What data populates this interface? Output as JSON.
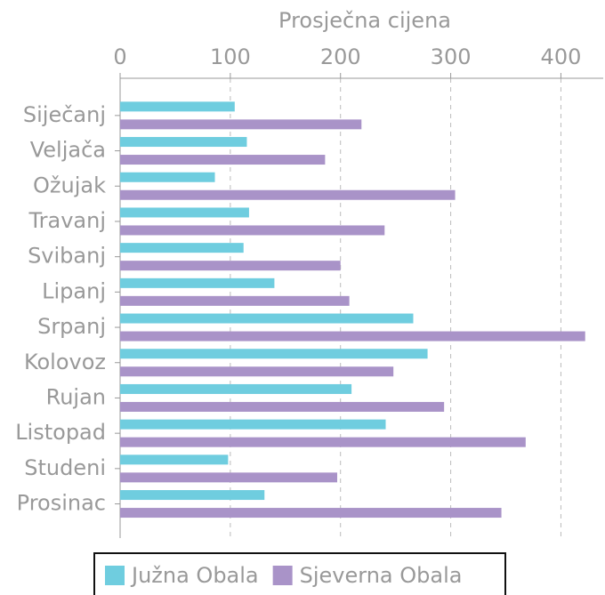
{
  "chart_data": {
    "type": "bar",
    "orientation": "horizontal",
    "xlabel": "Prosječna cijena",
    "categories": [
      "Siječanj",
      "Veljača",
      "Ožujak",
      "Travanj",
      "Svibanj",
      "Lipanj",
      "Srpanj",
      "Kolovoz",
      "Rujan",
      "Listopad",
      "Studeni",
      "Prosinac"
    ],
    "series": [
      {
        "name": "Južna Obala",
        "color": "#6fcddf",
        "values": [
          104,
          115,
          86,
          117,
          112,
          140,
          266,
          279,
          210,
          241,
          98,
          131
        ]
      },
      {
        "name": "Sjeverna Obala",
        "color": "#a993c8",
        "values": [
          219,
          186,
          304,
          240,
          200,
          208,
          422,
          248,
          294,
          368,
          197,
          346
        ]
      }
    ],
    "xlim": [
      0,
      440
    ],
    "xticks": [
      0,
      100,
      200,
      300,
      400
    ],
    "grid": true,
    "legend": "bottom"
  }
}
